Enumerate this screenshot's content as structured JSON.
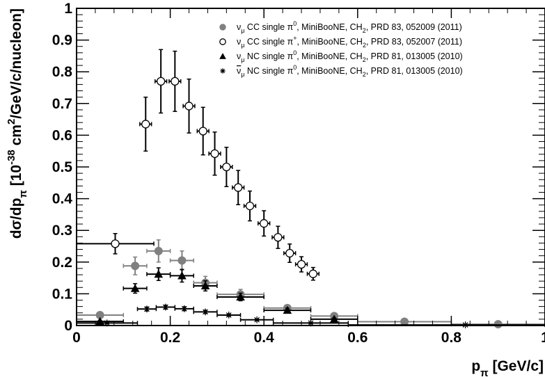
{
  "chart_data": {
    "type": "scatter",
    "xlabel": "p",
    "xlabel_sub": "π",
    "xlabel_unit": " [GeV/c]",
    "ylabel_parts": [
      "dσ/dp",
      "π",
      " [10",
      "-38",
      " cm",
      "2",
      "/GeV/c/nucleon]"
    ],
    "xlim": [
      0,
      1
    ],
    "ylim": [
      0,
      1
    ],
    "x_ticks": [
      {
        "value": 0,
        "label": "0"
      },
      {
        "value": 0.2,
        "label": "0.2"
      },
      {
        "value": 0.4,
        "label": "0.4"
      },
      {
        "value": 0.6,
        "label": "0.6"
      },
      {
        "value": 0.8,
        "label": "0.8"
      },
      {
        "value": 1,
        "label": "1"
      }
    ],
    "y_ticks": [
      {
        "value": 0,
        "label": "0"
      },
      {
        "value": 0.1,
        "label": "0.1"
      },
      {
        "value": 0.2,
        "label": "0.2"
      },
      {
        "value": 0.3,
        "label": "0.3"
      },
      {
        "value": 0.4,
        "label": "0.4"
      },
      {
        "value": 0.5,
        "label": "0.5"
      },
      {
        "value": 0.6,
        "label": "0.6"
      },
      {
        "value": 0.7,
        "label": "0.7"
      },
      {
        "value": 0.8,
        "label": "0.8"
      },
      {
        "value": 0.9,
        "label": "0.9"
      },
      {
        "value": 1,
        "label": "1"
      }
    ],
    "legend_position": "top-right",
    "series": [
      {
        "id": "cc-pi0",
        "label_parts": [
          "ν",
          "μ",
          " CC single π",
          "0",
          ", MiniBooNE, CH",
          "2",
          ", PRD 83, 052009 (2011)"
        ],
        "marker": "filled-circle",
        "color": "#808080",
        "points": [
          {
            "x": 0.05,
            "y": 0.033,
            "xerr": 0.05,
            "yerr": 0.006
          },
          {
            "x": 0.125,
            "y": 0.188,
            "xerr": 0.025,
            "yerr": 0.028
          },
          {
            "x": 0.175,
            "y": 0.235,
            "xerr": 0.025,
            "yerr": 0.035
          },
          {
            "x": 0.225,
            "y": 0.205,
            "xerr": 0.025,
            "yerr": 0.03
          },
          {
            "x": 0.275,
            "y": 0.135,
            "xerr": 0.025,
            "yerr": 0.02
          },
          {
            "x": 0.35,
            "y": 0.098,
            "xerr": 0.05,
            "yerr": 0.016
          },
          {
            "x": 0.45,
            "y": 0.055,
            "xerr": 0.05,
            "yerr": 0.01
          },
          {
            "x": 0.55,
            "y": 0.03,
            "xerr": 0.05,
            "yerr": 0.006
          },
          {
            "x": 0.7,
            "y": 0.012,
            "xerr": 0.1,
            "yerr": 0.003
          },
          {
            "x": 0.9,
            "y": 0.004,
            "xerr": 0.1,
            "yerr": 0.002
          }
        ]
      },
      {
        "id": "cc-pip",
        "label_parts": [
          "ν",
          "μ",
          " CC single π",
          "+",
          ", MiniBooNE, CH",
          "2",
          ", PRD 83, 052007 (2011)"
        ],
        "marker": "open-circle",
        "color": "#000000",
        "points": [
          {
            "x": 0.0825,
            "y": 0.258,
            "xerr": 0.0825,
            "yerr": 0.032
          },
          {
            "x": 0.1475,
            "y": 0.635,
            "xerr": 0.0125,
            "yerr": 0.085
          },
          {
            "x": 0.18,
            "y": 0.77,
            "xerr": 0.0125,
            "yerr": 0.1
          },
          {
            "x": 0.21,
            "y": 0.77,
            "xerr": 0.0125,
            "yerr": 0.095
          },
          {
            "x": 0.24,
            "y": 0.692,
            "xerr": 0.0125,
            "yerr": 0.085
          },
          {
            "x": 0.27,
            "y": 0.613,
            "xerr": 0.0125,
            "yerr": 0.075
          },
          {
            "x": 0.295,
            "y": 0.542,
            "xerr": 0.0125,
            "yerr": 0.068
          },
          {
            "x": 0.32,
            "y": 0.5,
            "xerr": 0.0125,
            "yerr": 0.062
          },
          {
            "x": 0.345,
            "y": 0.435,
            "xerr": 0.0125,
            "yerr": 0.054
          },
          {
            "x": 0.37,
            "y": 0.377,
            "xerr": 0.0125,
            "yerr": 0.047
          },
          {
            "x": 0.4,
            "y": 0.322,
            "xerr": 0.0125,
            "yerr": 0.04
          },
          {
            "x": 0.43,
            "y": 0.278,
            "xerr": 0.0125,
            "yerr": 0.035
          },
          {
            "x": 0.455,
            "y": 0.228,
            "xerr": 0.0125,
            "yerr": 0.029
          },
          {
            "x": 0.48,
            "y": 0.193,
            "xerr": 0.0125,
            "yerr": 0.024
          },
          {
            "x": 0.505,
            "y": 0.163,
            "xerr": 0.0125,
            "yerr": 0.02
          }
        ]
      },
      {
        "id": "nc-pi0",
        "label_parts": [
          "ν",
          "μ",
          " NC single π",
          "0",
          ", MiniBooNE, CH",
          "2",
          ", PRD 81, 013005 (2010)"
        ],
        "marker": "filled-triangle",
        "color": "#000000",
        "points": [
          {
            "x": 0.05,
            "y": 0.013,
            "xerr": 0.05,
            "yerr": 0.003
          },
          {
            "x": 0.125,
            "y": 0.117,
            "xerr": 0.025,
            "yerr": 0.015
          },
          {
            "x": 0.175,
            "y": 0.162,
            "xerr": 0.025,
            "yerr": 0.02
          },
          {
            "x": 0.225,
            "y": 0.157,
            "xerr": 0.025,
            "yerr": 0.02
          },
          {
            "x": 0.275,
            "y": 0.125,
            "xerr": 0.025,
            "yerr": 0.016
          },
          {
            "x": 0.35,
            "y": 0.09,
            "xerr": 0.05,
            "yerr": 0.012
          },
          {
            "x": 0.45,
            "y": 0.048,
            "xerr": 0.05,
            "yerr": 0.007
          },
          {
            "x": 0.55,
            "y": 0.02,
            "xerr": 0.05,
            "yerr": 0.004
          }
        ]
      },
      {
        "id": "nc-pi0-bar",
        "label_parts": [
          "ν",
          "μ",
          " NC single π",
          "0",
          ", MiniBooNE, CH",
          "2",
          ", PRD 81, 013005 (2010)"
        ],
        "overline_first": true,
        "marker": "asterisk",
        "color": "#000000",
        "points": [
          {
            "x": 0.065,
            "y": 0.008,
            "xerr": 0.065,
            "yerr": 0.002
          },
          {
            "x": 0.15,
            "y": 0.052,
            "xerr": 0.02,
            "yerr": 0.006
          },
          {
            "x": 0.19,
            "y": 0.058,
            "xerr": 0.02,
            "yerr": 0.006
          },
          {
            "x": 0.23,
            "y": 0.053,
            "xerr": 0.02,
            "yerr": 0.006
          },
          {
            "x": 0.275,
            "y": 0.043,
            "xerr": 0.025,
            "yerr": 0.005
          },
          {
            "x": 0.325,
            "y": 0.033,
            "xerr": 0.025,
            "yerr": 0.004
          },
          {
            "x": 0.385,
            "y": 0.018,
            "xerr": 0.035,
            "yerr": 0.003
          },
          {
            "x": 0.5,
            "y": 0.008,
            "xerr": 0.08,
            "yerr": 0.002
          },
          {
            "x": 0.83,
            "y": 0.002,
            "xerr": 0.25,
            "yerr": 0.001
          }
        ]
      }
    ]
  }
}
